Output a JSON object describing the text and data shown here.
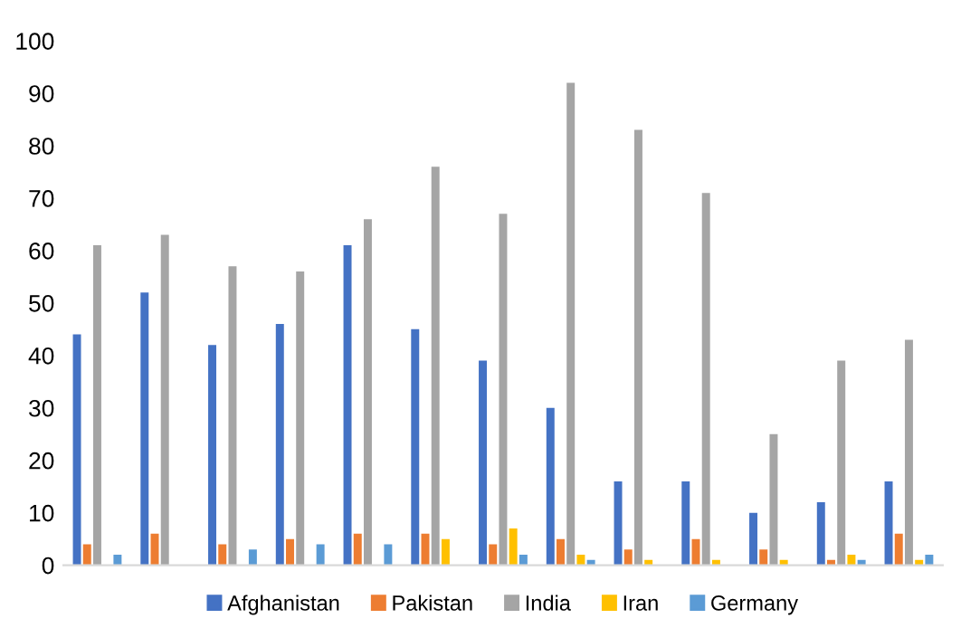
{
  "chart_data": {
    "type": "bar",
    "categories": [
      null,
      null,
      null,
      null,
      null,
      null,
      null,
      null,
      null,
      null,
      null,
      null,
      null
    ],
    "series": [
      {
        "name": "Afghanistan",
        "color": "#4472c4",
        "values": [
          44,
          52,
          42,
          46,
          61,
          45,
          39,
          30,
          16,
          16,
          10,
          12,
          16
        ]
      },
      {
        "name": "Pakistan",
        "color": "#ed7d31",
        "values": [
          4,
          6,
          4,
          5,
          6,
          6,
          4,
          5,
          3,
          5,
          3,
          1,
          6
        ]
      },
      {
        "name": "India",
        "color": "#a5a5a5",
        "values": [
          61,
          63,
          57,
          56,
          66,
          76,
          67,
          92,
          83,
          71,
          25,
          39,
          43
        ]
      },
      {
        "name": "Iran",
        "color": "#ffc000",
        "values": [
          0,
          0,
          0,
          0,
          0,
          5,
          7,
          2,
          1,
          1,
          1,
          2,
          1
        ]
      },
      {
        "name": "Germany",
        "color": "#5b9bd5",
        "values": [
          2,
          0,
          3,
          4,
          4,
          0,
          2,
          1,
          0,
          0,
          0,
          1,
          2
        ]
      }
    ],
    "ylim": [
      0,
      100
    ],
    "yticks": [
      0,
      10,
      20,
      30,
      40,
      50,
      60,
      70,
      80,
      90,
      100
    ],
    "grid": false,
    "legend": "bottom"
  }
}
